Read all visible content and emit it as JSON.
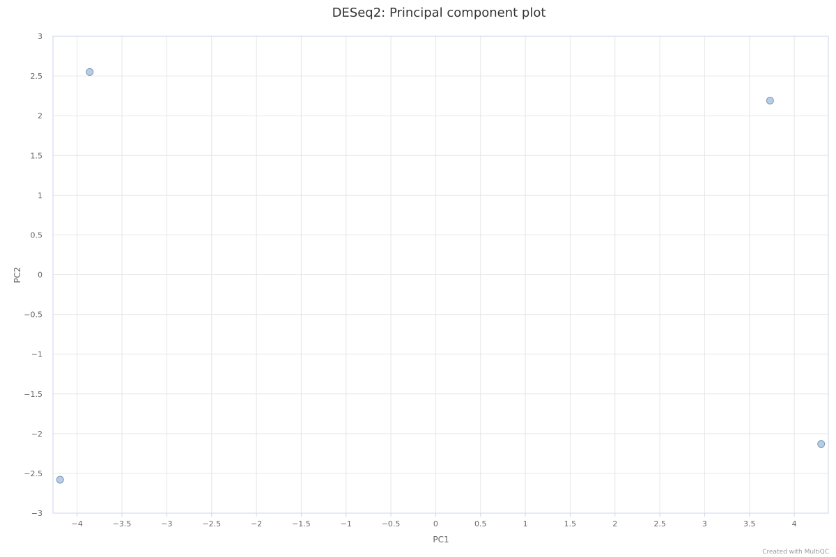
{
  "chart_data": {
    "type": "scatter",
    "title": "DESeq2: Principal component plot",
    "xlabel": "PC1",
    "ylabel": "PC2",
    "xlim": [
      -4.27,
      4.38
    ],
    "ylim": [
      -3,
      3
    ],
    "xticks": [
      -4,
      -3.5,
      -3,
      -2.5,
      -2,
      -1.5,
      -1,
      -0.5,
      0,
      0.5,
      1,
      1.5,
      2,
      2.5,
      3,
      3.5,
      4
    ],
    "yticks": [
      -3,
      -2.5,
      -2,
      -1.5,
      -1,
      -0.5,
      0,
      0.5,
      1,
      1.5,
      2,
      2.5,
      3
    ],
    "grid": true,
    "points": [
      {
        "x": -3.86,
        "y": 2.55
      },
      {
        "x": 3.73,
        "y": 2.19
      },
      {
        "x": 4.3,
        "y": -2.13
      },
      {
        "x": -4.19,
        "y": -2.58
      }
    ],
    "colors": {
      "marker_fill": "#b6cde6",
      "marker_stroke": "#7f98b3",
      "grid": "#e6e6e6",
      "axis": "#ccd6eb"
    }
  },
  "credit": "Created with MultiQC"
}
